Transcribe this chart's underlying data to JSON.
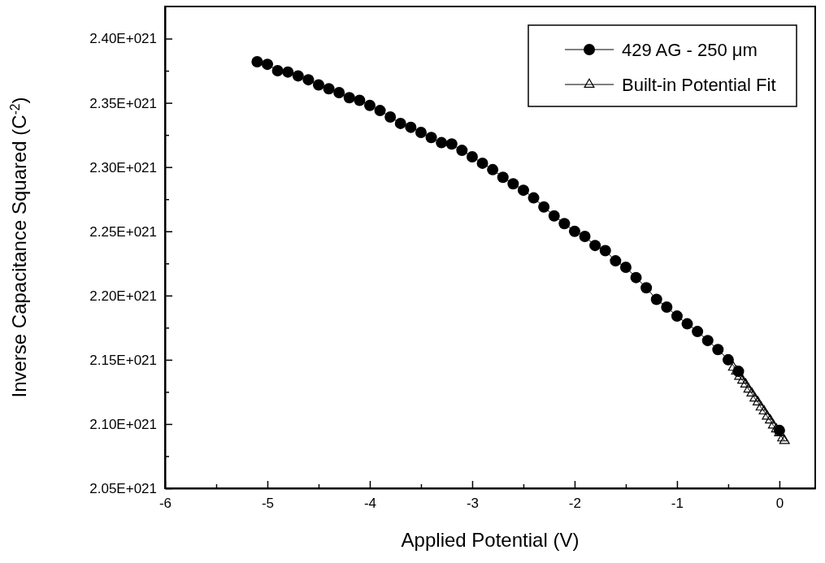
{
  "chart_data": {
    "type": "line",
    "xlabel": "Applied Potential (V)",
    "ylabel": "Inverse Capacitance Squared (C$^{-2}$)",
    "xlim": [
      -6,
      0.35
    ],
    "xticks": [
      -6,
      {
        "value": -5.5,
        "label": null
      },
      -5,
      {
        "value": -4.5,
        "label": null
      },
      -4,
      {
        "value": -3.5,
        "label": null
      },
      -3,
      {
        "value": -2.5,
        "label": null
      },
      -2,
      {
        "value": -1.5,
        "label": null
      },
      -1,
      {
        "value": -0.5,
        "label": null
      },
      0
    ],
    "ylim": [
      2.05e+21,
      2.425e+21
    ],
    "yticks": [
      {
        "value": 2.05e+21,
        "label": "2.05E+021"
      },
      {
        "value": 2.075e+21,
        "label": null
      },
      {
        "value": 2.1e+21,
        "label": "2.10E+021"
      },
      {
        "value": 2.125e+21,
        "label": null
      },
      {
        "value": 2.15e+21,
        "label": "2.15E+021"
      },
      {
        "value": 2.175e+21,
        "label": null
      },
      {
        "value": 2.2e+21,
        "label": "2.20E+021"
      },
      {
        "value": 2.225e+21,
        "label": null
      },
      {
        "value": 2.25e+21,
        "label": "2.25E+021"
      },
      {
        "value": 2.275e+21,
        "label": null
      },
      {
        "value": 2.3e+21,
        "label": "2.30E+021"
      },
      {
        "value": 2.325e+21,
        "label": null
      },
      {
        "value": 2.35e+21,
        "label": "2.35E+021"
      },
      {
        "value": 2.375e+21,
        "label": null
      },
      {
        "value": 2.4e+21,
        "label": "2.40E+021"
      }
    ],
    "grid": false,
    "legend": "top right",
    "series": [
      {
        "name": "429 AG - 250 μm",
        "color": "#000000",
        "marker": "circle",
        "x": [
          -5.1,
          -5.0,
          -4.9,
          -4.8,
          -4.7,
          -4.6,
          -4.5,
          -4.4,
          -4.3,
          -4.2,
          -4.1,
          -4.0,
          -3.9,
          -3.8,
          -3.7,
          -3.6,
          -3.5,
          -3.4,
          -3.3,
          -3.2,
          -3.1,
          -3.0,
          -2.9,
          -2.8,
          -2.7,
          -2.6,
          -2.5,
          -2.4,
          -2.3,
          -2.2,
          -2.1,
          -2.0,
          -1.9,
          -1.8,
          -1.7,
          -1.6,
          -1.5,
          -1.4,
          -1.3,
          -1.2,
          -1.1,
          -1.0,
          -0.9,
          -0.8,
          -0.7,
          -0.6,
          -0.5,
          -0.4,
          0.0
        ],
        "values": [
          2.382e+21,
          2.38e+21,
          2.375e+21,
          2.374e+21,
          2.371e+21,
          2.368e+21,
          2.364e+21,
          2.361e+21,
          2.358e+21,
          2.354e+21,
          2.352e+21,
          2.348e+21,
          2.344e+21,
          2.339e+21,
          2.334e+21,
          2.331e+21,
          2.327e+21,
          2.323e+21,
          2.319e+21,
          2.318e+21,
          2.313e+21,
          2.308e+21,
          2.303e+21,
          2.298e+21,
          2.292e+21,
          2.287e+21,
          2.282e+21,
          2.276e+21,
          2.269e+21,
          2.262e+21,
          2.256e+21,
          2.25e+21,
          2.246e+21,
          2.239e+21,
          2.235e+21,
          2.227e+21,
          2.222e+21,
          2.214e+21,
          2.206e+21,
          2.197e+21,
          2.191e+21,
          2.184e+21,
          2.178e+21,
          2.172e+21,
          2.165e+21,
          2.158e+21,
          2.15e+21,
          2.141e+21,
          2.095e+21
        ]
      },
      {
        "name": "Built-in Potential Fit",
        "color": "#000000",
        "marker": "triangle",
        "x": [
          -0.45,
          -0.42,
          -0.39,
          -0.36,
          -0.33,
          -0.3,
          -0.27,
          -0.24,
          -0.21,
          -0.18,
          -0.15,
          -0.12,
          -0.09,
          -0.06,
          -0.03,
          0.0,
          0.03,
          0.05
        ],
        "values": [
          2.144e+21,
          2.141e+21,
          2.137e+21,
          2.134e+21,
          2.131e+21,
          2.127e+21,
          2.124e+21,
          2.12e+21,
          2.117e+21,
          2.113e+21,
          2.11e+21,
          2.106e+21,
          2.103e+21,
          2.099e+21,
          2.096e+21,
          2.093e+21,
          2.089e+21,
          2.087e+21
        ]
      }
    ]
  }
}
